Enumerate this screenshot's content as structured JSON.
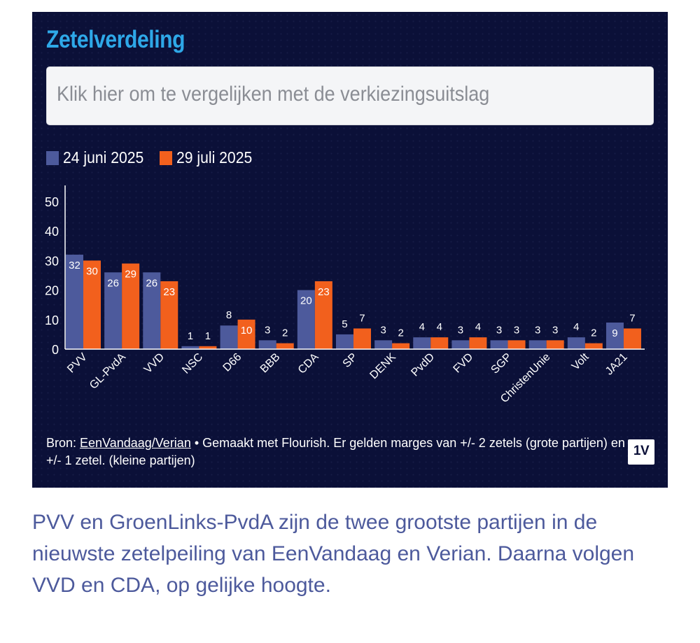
{
  "header": {
    "title": "Zetelverdeling"
  },
  "compare": {
    "prompt": "Klik hier om te vergelijken met de verkiezingsuitslag"
  },
  "footer": {
    "source_prefix": "Bron: ",
    "source_link": "EenVandaag/Verian",
    "source_rest": " • Gemaakt met Flourish. Er gelden marges van +/- 2 zetels (grote partijen) en +/- 1 zetel. (kleine partijen)",
    "logo_text": "1V"
  },
  "caption": "PVV en GroenLinks-PvdA zijn de twee grootste partijen in de nieuwste zetelpeiling van EenVandaag en Verian. Daarna volgen VVD en CDA, op gelijke hoogte.",
  "chart_data": {
    "type": "bar",
    "title": "Zetelverdeling",
    "xlabel": "",
    "ylabel": "",
    "ylim": [
      0,
      50
    ],
    "yticks": [
      0,
      10,
      20,
      30,
      40,
      50
    ],
    "grid": false,
    "legend_position": "top-left",
    "categories": [
      "PVV",
      "GL-PvdA",
      "VVD",
      "NSC",
      "D66",
      "BBB",
      "CDA",
      "SP",
      "DENK",
      "PvdD",
      "FVD",
      "SGP",
      "ChristenUnie",
      "Volt",
      "JA21"
    ],
    "series": [
      {
        "name": "24 juni 2025",
        "color": "#4d5a9c",
        "values": [
          32,
          26,
          26,
          1,
          8,
          3,
          20,
          5,
          3,
          4,
          3,
          3,
          3,
          4,
          9
        ]
      },
      {
        "name": "29 juli 2025",
        "color": "#f2601d",
        "values": [
          30,
          29,
          23,
          1,
          10,
          2,
          23,
          7,
          2,
          4,
          4,
          3,
          3,
          2,
          7
        ]
      }
    ]
  }
}
